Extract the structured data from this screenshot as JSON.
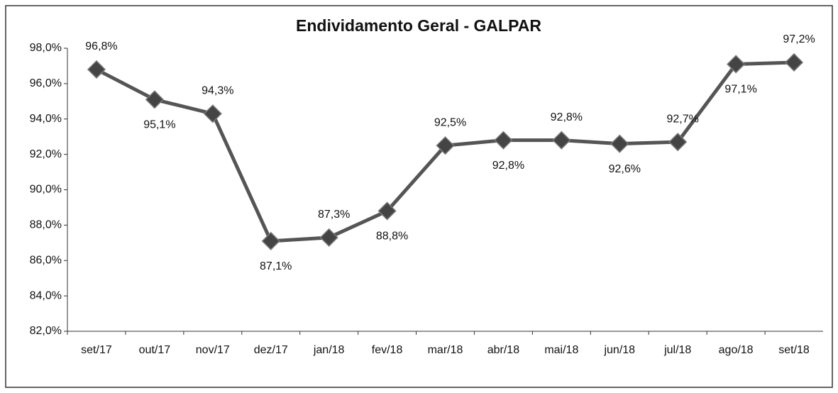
{
  "chart_data": {
    "type": "line",
    "title": "Endividamento Geral - GALPAR",
    "categories": [
      "set/17",
      "out/17",
      "nov/17",
      "dez/17",
      "jan/18",
      "fev/18",
      "mar/18",
      "abr/18",
      "mai/18",
      "jun/18",
      "jul/18",
      "ago/18",
      "set/18"
    ],
    "series": [
      {
        "name": "Endividamento Geral",
        "color": "#555555",
        "values": [
          96.8,
          95.1,
          94.3,
          87.1,
          87.3,
          88.8,
          92.5,
          92.8,
          92.8,
          92.6,
          92.7,
          97.1,
          97.2
        ],
        "value_labels": [
          "96,8%",
          "95,1%",
          "94,3%",
          "87,1%",
          "87,3%",
          "88,8%",
          "92,5%",
          "92,8%",
          "92,8%",
          "92,6%",
          "92,7%",
          "97,1%",
          "97,2%"
        ]
      }
    ],
    "ylim": [
      82,
      98
    ],
    "yticks": [
      {
        "value": 82,
        "label": "82,0%"
      },
      {
        "value": 84,
        "label": "84,0%"
      },
      {
        "value": 86,
        "label": "86,0%"
      },
      {
        "value": 88,
        "label": "88,0%"
      },
      {
        "value": 90,
        "label": "90,0%"
      },
      {
        "value": 92,
        "label": "92,0%"
      },
      {
        "value": 94,
        "label": "94,0%"
      },
      {
        "value": 96,
        "label": "96,0%"
      },
      {
        "value": 98,
        "label": "98,0%"
      }
    ]
  }
}
